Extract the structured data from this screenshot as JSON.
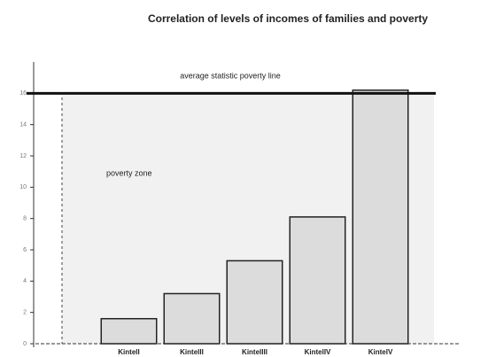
{
  "chart_data": {
    "type": "bar",
    "title": "Correlation of levels of incomes of families and poverty",
    "categories": [
      "KintelI",
      "KintelII",
      "KintelIII",
      "KintelIV",
      "KintelV"
    ],
    "values": [
      1.6,
      3.2,
      5.3,
      8.1,
      16.2
    ],
    "color": "#dcdcdc",
    "ylim": [
      0,
      18
    ],
    "yticks": [
      0,
      2,
      4,
      6,
      8,
      10,
      12,
      14,
      16
    ],
    "poverty_line": {
      "value": 16,
      "label": "average statistic poverty line"
    },
    "zone_label": "poverty zone"
  }
}
